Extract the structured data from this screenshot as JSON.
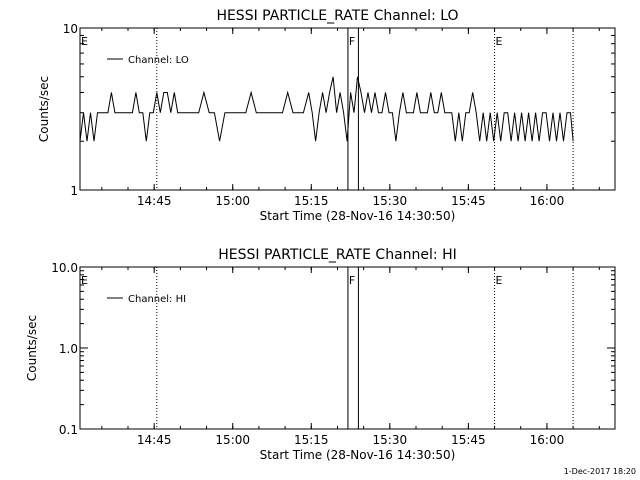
{
  "chart_data": [
    {
      "type": "line",
      "title": "HESSI PARTICLE_RATE Channel: LO",
      "xlabel": "Start Time (28-Nov-16 14:30:50)",
      "ylabel": "Counts/sec",
      "yscale": "log",
      "ylim": [
        1,
        10
      ],
      "yticks": [
        "1",
        "10"
      ],
      "xlim": [
        "14:30:50",
        "16:13:00"
      ],
      "xticks": [
        "14:45",
        "15:00",
        "15:15",
        "15:30",
        "15:45",
        "16:00"
      ],
      "legend": {
        "placement": "top-left",
        "entries": [
          "Channel: LO"
        ]
      },
      "event_markers": [
        {
          "label": "E",
          "time": "14:30:50",
          "style": "dotted"
        },
        {
          "label": "",
          "time": "14:45:30",
          "style": "dotted"
        },
        {
          "label": "F",
          "time": "15:22:00",
          "style": "solid"
        },
        {
          "label": "",
          "time": "15:24:00",
          "style": "solid"
        },
        {
          "label": "E",
          "time": "15:50:00",
          "style": "dotted"
        },
        {
          "label": "",
          "time": "16:05:00",
          "style": "dotted"
        }
      ],
      "series": [
        {
          "name": "Channel: LO",
          "x": [
            "14:30:50",
            "14:31:30",
            "14:32:10",
            "14:32:50",
            "14:33:30",
            "14:34:10",
            "14:34:50",
            "14:35:30",
            "14:36:10",
            "14:36:50",
            "14:37:30",
            "14:38:10",
            "14:38:50",
            "14:39:30",
            "14:40:10",
            "14:40:50",
            "14:41:30",
            "14:42:10",
            "14:42:50",
            "14:43:30",
            "14:44:10",
            "14:44:50",
            "14:45:30",
            "14:46:10",
            "14:46:50",
            "14:47:30",
            "14:48:10",
            "14:48:50",
            "14:49:30",
            "14:50:30",
            "14:51:30",
            "14:52:30",
            "14:53:30",
            "14:54:30",
            "14:55:30",
            "14:56:30",
            "14:57:30",
            "14:58:30",
            "14:59:30",
            "15:00:30",
            "15:01:30",
            "15:02:30",
            "15:03:30",
            "15:04:30",
            "15:05:30",
            "15:06:30",
            "15:07:30",
            "15:08:30",
            "15:09:30",
            "15:10:30",
            "15:11:30",
            "15:12:30",
            "15:13:30",
            "15:14:30",
            "15:15:10",
            "15:15:50",
            "15:16:30",
            "15:17:10",
            "15:17:50",
            "15:18:30",
            "15:19:10",
            "15:19:50",
            "15:20:30",
            "15:21:10",
            "15:21:50",
            "15:22:30",
            "15:23:10",
            "15:23:50",
            "15:24:30",
            "15:25:10",
            "15:25:50",
            "15:26:30",
            "15:27:10",
            "15:27:50",
            "15:28:30",
            "15:29:10",
            "15:29:50",
            "15:30:30",
            "15:31:10",
            "15:31:50",
            "15:32:30",
            "15:33:10",
            "15:33:50",
            "15:34:30",
            "15:35:10",
            "15:35:50",
            "15:36:30",
            "15:37:10",
            "15:37:50",
            "15:38:30",
            "15:39:10",
            "15:39:50",
            "15:40:30",
            "15:41:10",
            "15:41:50",
            "15:42:30",
            "15:43:10",
            "15:43:50",
            "15:44:30",
            "15:45:10",
            "15:45:50",
            "15:46:30",
            "15:47:10",
            "15:47:50",
            "15:48:30",
            "15:49:10",
            "15:49:50",
            "15:50:30",
            "15:51:10",
            "15:51:50",
            "15:52:30",
            "15:53:10",
            "15:53:50",
            "15:54:30",
            "15:55:10",
            "15:55:50",
            "15:56:30",
            "15:57:10",
            "15:57:50",
            "15:58:30",
            "15:59:10",
            "15:59:50",
            "16:00:30",
            "16:01:10",
            "16:01:50",
            "16:02:30",
            "16:03:10",
            "16:03:50",
            "16:04:30",
            "16:05:00"
          ],
          "y": [
            2,
            3,
            2,
            3,
            2,
            3,
            3,
            3,
            3,
            4,
            3,
            3,
            3,
            3,
            3,
            3,
            4,
            3,
            3,
            2,
            3,
            3,
            4,
            3,
            4,
            4,
            3,
            4,
            3,
            3,
            3,
            3,
            3,
            4,
            3,
            3,
            2,
            3,
            3,
            3,
            3,
            3,
            4,
            3,
            3,
            3,
            3,
            3,
            3,
            4,
            3,
            3,
            3,
            4,
            3,
            2,
            3,
            4,
            3,
            4,
            5,
            3,
            4,
            3,
            2,
            4,
            3,
            5,
            4,
            3,
            4,
            3,
            4,
            3,
            3,
            4,
            3,
            3,
            2,
            3,
            4,
            3,
            3,
            3,
            4,
            3,
            3,
            3,
            4,
            3,
            3,
            4,
            3,
            3,
            3,
            2,
            3,
            2,
            3,
            3,
            4,
            3,
            2,
            3,
            2,
            3,
            2,
            3,
            2,
            3,
            3,
            2,
            3,
            2,
            3,
            2,
            3,
            2,
            3,
            2,
            3,
            3,
            2,
            3,
            2,
            3,
            2,
            3,
            3,
            2
          ]
        }
      ]
    },
    {
      "type": "line",
      "title": "HESSI PARTICLE_RATE Channel: HI",
      "xlabel": "Start Time (28-Nov-16 14:30:50)",
      "ylabel": "Counts/sec",
      "yscale": "log",
      "ylim": [
        0.1,
        10
      ],
      "yticks": [
        "0.1",
        "1.0",
        "10.0"
      ],
      "xlim": [
        "14:30:50",
        "16:13:00"
      ],
      "xticks": [
        "14:45",
        "15:00",
        "15:15",
        "15:30",
        "15:45",
        "16:00"
      ],
      "legend": {
        "placement": "top-left",
        "entries": [
          "Channel: HI"
        ]
      },
      "event_markers": [
        {
          "label": "E",
          "time": "14:30:50",
          "style": "dotted"
        },
        {
          "label": "",
          "time": "14:45:30",
          "style": "dotted"
        },
        {
          "label": "F",
          "time": "15:22:00",
          "style": "solid"
        },
        {
          "label": "",
          "time": "15:24:00",
          "style": "solid"
        },
        {
          "label": "E",
          "time": "15:50:00",
          "style": "dotted"
        },
        {
          "label": "",
          "time": "16:05:00",
          "style": "dotted"
        }
      ],
      "series": [
        {
          "name": "Channel: HI",
          "x": [],
          "y": []
        }
      ]
    }
  ],
  "footer": {
    "timestamp": "1-Dec-2017 18:20"
  }
}
